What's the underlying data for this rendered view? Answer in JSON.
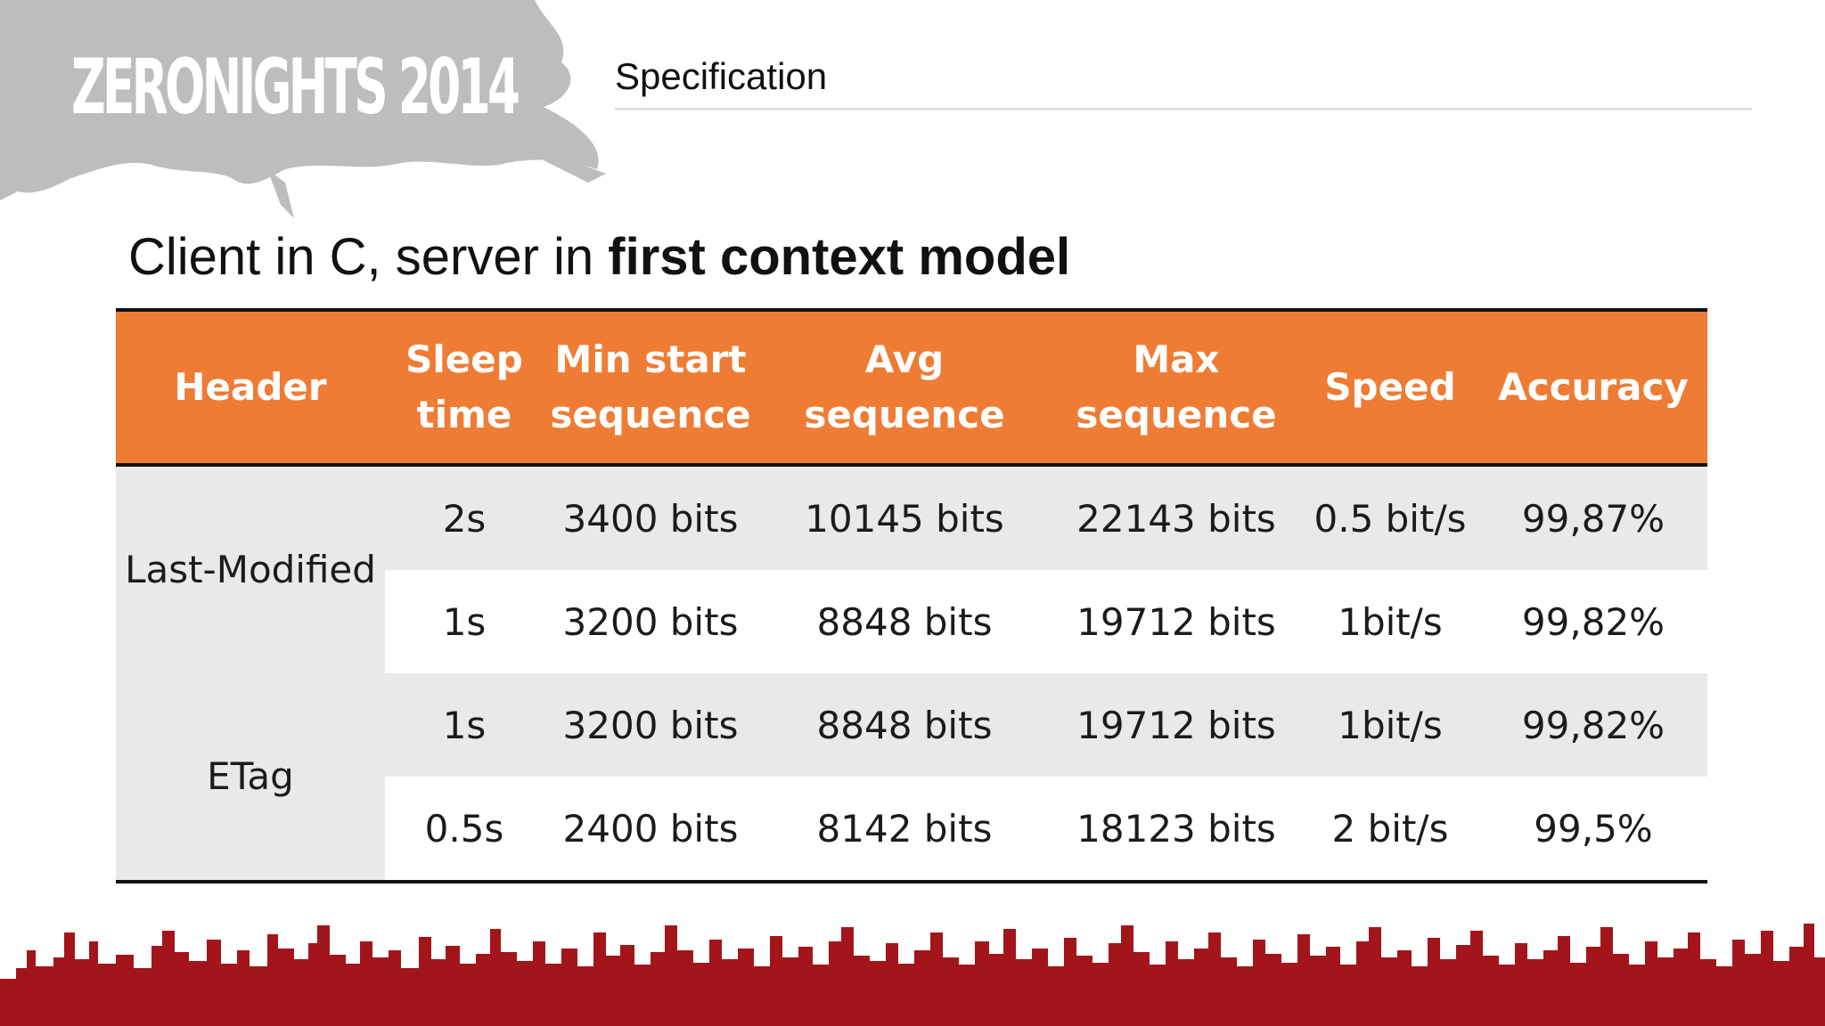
{
  "branding": {
    "logo_text": "ZERONIGHTS 2014"
  },
  "section_title": "Specification",
  "heading": {
    "normal": "Client in C, server in ",
    "bold": "first context model"
  },
  "table": {
    "columns": [
      "Header",
      "Sleep time",
      "Min start sequence",
      "Avg sequence",
      "Max sequence",
      "Speed",
      "Accuracy"
    ],
    "groups": [
      {
        "header": "Last-Modified",
        "rows": [
          {
            "sleep": "2s",
            "min": "3400 bits",
            "avg": "10145 bits",
            "max": "22143 bits",
            "speed": "0.5 bit/s",
            "accuracy": "99,87%"
          },
          {
            "sleep": "1s",
            "min": "3200 bits",
            "avg": "8848 bits",
            "max": "19712 bits",
            "speed": "1bit/s",
            "accuracy": "99,82%"
          }
        ]
      },
      {
        "header": "ETag",
        "rows": [
          {
            "sleep": "1s",
            "min": "3200 bits",
            "avg": "8848 bits",
            "max": "19712 bits",
            "speed": "1bit/s",
            "accuracy": "99,82%"
          },
          {
            "sleep": "0.5s",
            "min": "2400 bits",
            "avg": "8142 bits",
            "max": "18123 bits",
            "speed": "2 bit/s",
            "accuracy": "99,5%"
          }
        ]
      }
    ]
  },
  "colors": {
    "header_bg": "#ef7c35",
    "row_shade": "#e9e8eb",
    "skyline": "#a3151b",
    "splash": "#bdbdbf"
  }
}
